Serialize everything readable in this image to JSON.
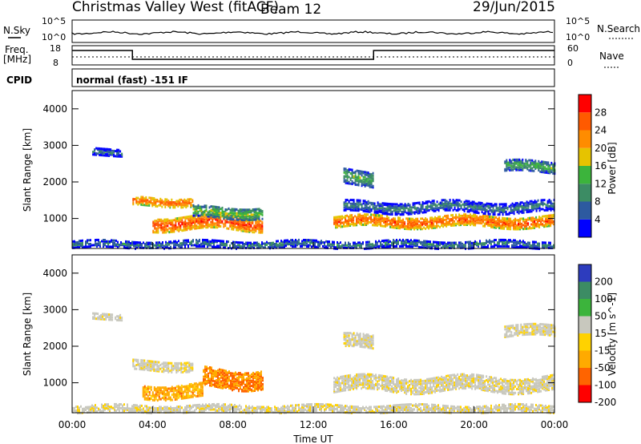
{
  "header": {
    "title": "Christmas Valley West (fitACF)",
    "beam": "Beam 12",
    "date": "29/Jun/2015"
  },
  "top_panels": {
    "nsky_label": "N.Sky",
    "nsky_ticks": [
      "10^5",
      "10^0"
    ],
    "nsearch_label": "N.Search",
    "freq_label_1": "Freq.",
    "freq_label_2": "[MHz]",
    "freq_ticks": [
      "18",
      "8"
    ],
    "nave_label": "Nave",
    "nave_ticks": [
      "60",
      "0"
    ],
    "cpid_label": "CPID",
    "cpid_text": "normal (fast) -151 IF"
  },
  "chart_data": [
    {
      "type": "heatmap",
      "name": "power",
      "ylabel": "Slant Range [km]",
      "xlabel": "",
      "xlim_hours": [
        0,
        24
      ],
      "ylim_km": [
        180,
        4500
      ],
      "yticks": [
        "1000",
        "2000",
        "3000",
        "4000"
      ],
      "colorbar": {
        "label": "Power [dB]",
        "ticks": [
          "4",
          "8",
          "12",
          "16",
          "20",
          "24",
          "28"
        ],
        "colors": [
          "#0000ff",
          "#2d5aa0",
          "#3c8c64",
          "#3cb43c",
          "#e6c300",
          "#ff8c00",
          "#ff5a00",
          "#ff0000"
        ]
      },
      "regions": [
        {
          "t_start": 3.0,
          "t_end": 6.0,
          "r_center": 1500,
          "r_half_width": 120,
          "power_db": 26
        },
        {
          "t_start": 4.0,
          "t_end": 9.5,
          "r_center": 900,
          "r_half_width": 180,
          "power_db": 28
        },
        {
          "t_start": 6.0,
          "t_end": 9.5,
          "r_center": 1200,
          "r_half_width": 150,
          "power_db": 16
        },
        {
          "t_start": 1.0,
          "t_end": 2.5,
          "r_center": 2850,
          "r_half_width": 90,
          "power_db": 10
        },
        {
          "t_start": 13.0,
          "t_end": 24.0,
          "r_center": 950,
          "r_half_width": 150,
          "power_db": 27
        },
        {
          "t_start": 13.5,
          "t_end": 24.0,
          "r_center": 1350,
          "r_half_width": 150,
          "power_db": 10
        },
        {
          "t_start": 13.5,
          "t_end": 15.0,
          "r_center": 2150,
          "r_half_width": 200,
          "power_db": 14
        },
        {
          "t_start": 21.5,
          "t_end": 24.0,
          "r_center": 2450,
          "r_half_width": 150,
          "power_db": 14
        },
        {
          "t_start": 0.0,
          "t_end": 24.0,
          "r_center": 330,
          "r_half_width": 100,
          "power_db": 10
        }
      ]
    },
    {
      "type": "heatmap",
      "name": "velocity",
      "ylabel": "Slant Range [km]",
      "xlabel": "Time UT",
      "xlim_hours": [
        0,
        24
      ],
      "ylim_km": [
        180,
        4500
      ],
      "xticks": [
        "00:00",
        "04:00",
        "08:00",
        "12:00",
        "16:00",
        "20:00",
        "00:00"
      ],
      "yticks": [
        "1000",
        "2000",
        "3000",
        "4000"
      ],
      "colorbar": {
        "label": "Velocity [m s^-1]",
        "ticks": [
          "200",
          "100",
          "50",
          "15",
          "-15",
          "-50",
          "-100",
          "-200"
        ],
        "colors": [
          "#2d3cbe",
          "#3c8c64",
          "#3cb43c",
          "#c8c8be",
          "#ffd200",
          "#ffaa00",
          "#ff6400",
          "#ff0000"
        ]
      },
      "regions": [
        {
          "t_start": 3.0,
          "t_end": 6.0,
          "r_center": 1500,
          "r_half_width": 130,
          "velocity": 0
        },
        {
          "t_start": 3.5,
          "t_end": 6.5,
          "r_center": 800,
          "r_half_width": 180,
          "velocity": -50
        },
        {
          "t_start": 6.5,
          "t_end": 9.5,
          "r_center": 1150,
          "r_half_width": 250,
          "velocity": -75
        },
        {
          "t_start": 1.0,
          "t_end": 2.5,
          "r_center": 2850,
          "r_half_width": 80,
          "velocity": 0
        },
        {
          "t_start": 13.0,
          "t_end": 24.0,
          "r_center": 1000,
          "r_half_width": 200,
          "velocity": 0
        },
        {
          "t_start": 13.5,
          "t_end": 15.0,
          "r_center": 2150,
          "r_half_width": 180,
          "velocity": 0
        },
        {
          "t_start": 21.5,
          "t_end": 24.0,
          "r_center": 2450,
          "r_half_width": 150,
          "velocity": 0
        },
        {
          "t_start": 0.0,
          "t_end": 24.0,
          "r_center": 330,
          "r_half_width": 100,
          "velocity": 0
        }
      ]
    }
  ]
}
